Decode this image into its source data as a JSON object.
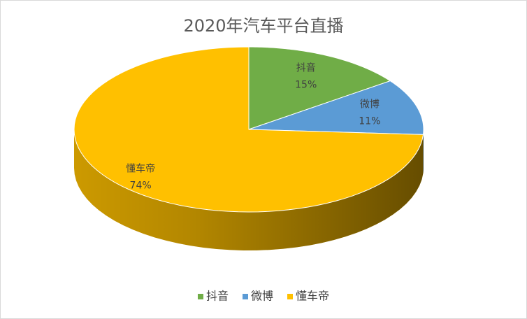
{
  "chart_data": {
    "type": "pie3d",
    "title": "2020年汽车平台直播",
    "categories": [
      "抖音",
      "微博",
      "懂车帝"
    ],
    "values": [
      15,
      11,
      74
    ],
    "value_labels": [
      "15%",
      "11%",
      "74%"
    ],
    "colors": [
      "#70ad47",
      "#5b9bd5",
      "#ffc000"
    ],
    "legend": "bottom"
  }
}
